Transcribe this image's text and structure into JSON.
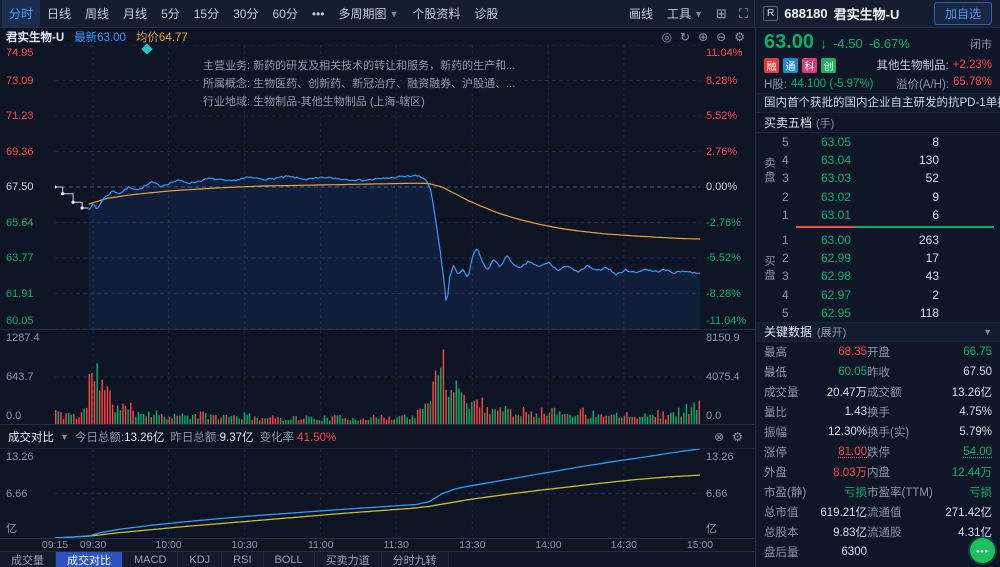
{
  "colors": {
    "up": "#ff4646",
    "down": "#00b36b",
    "accent": "#3f8cff",
    "price_line": "#2f9bff",
    "avg_line": "#e8a23c",
    "today_line": "#2f9bff",
    "yesterday_line": "#c9bd37"
  },
  "toolbar": {
    "periods": [
      {
        "label": "分时",
        "active": true
      },
      {
        "label": "日线"
      },
      {
        "label": "周线"
      },
      {
        "label": "月线"
      },
      {
        "label": "5分"
      },
      {
        "label": "15分"
      },
      {
        "label": "30分"
      },
      {
        "label": "60分"
      }
    ],
    "more": "•••",
    "menus": [
      {
        "label": "多周期图",
        "caret": true
      },
      {
        "label": "个股资料",
        "caret": false
      },
      {
        "label": "诊股",
        "caret": false
      }
    ],
    "tools": [
      {
        "label": "画线",
        "caret": false
      },
      {
        "label": "工具",
        "caret": true
      }
    ],
    "window_icons": [
      {
        "name": "multi-chart-icon",
        "glyph": "⊞"
      },
      {
        "name": "fullscreen-icon",
        "glyph": "⛶"
      }
    ],
    "flag": "R",
    "code": "688180",
    "name": "君实生物-U",
    "add_watchlist": "加自选"
  },
  "chart_header": {
    "name": "君实生物-U",
    "latest_label": "最新",
    "latest_value": "63.00",
    "avg_label": "均价",
    "avg_value": "64.77",
    "icons": [
      {
        "name": "snapshot-icon",
        "glyph": "◎"
      },
      {
        "name": "refresh-icon",
        "glyph": "↻"
      },
      {
        "name": "zoom-in-icon",
        "glyph": "⊕"
      },
      {
        "name": "zoom-out-icon",
        "glyph": "⊖"
      },
      {
        "name": "settings-gear-icon",
        "glyph": "⚙"
      }
    ]
  },
  "overlay": {
    "rows": [
      {
        "label": "主营业务:",
        "text": "新药的研发及相关技术的转让和服务，新药的生产和..."
      },
      {
        "label": "所属概念:",
        "text": "生物医药、创新药、新冠治疗、融资融券、沪股通、..."
      },
      {
        "label": "行业地域:",
        "text": "生物制品-其他生物制品 (上海-辖区)"
      }
    ]
  },
  "quote": {
    "price": "63.00",
    "arrow": "↓",
    "change": "-4.50",
    "percent": "-6.67%",
    "status": "闭市"
  },
  "badges": [
    {
      "text": "融",
      "color": "#e03b3b"
    },
    {
      "text": "通",
      "color": "#1f89c9"
    },
    {
      "text": "科",
      "color": "#e03b6e"
    },
    {
      "text": "创",
      "color": "#1fae5e"
    }
  ],
  "industry": {
    "label": "其他生物制品:",
    "value": "+2.23%"
  },
  "hk": {
    "label": "H股:",
    "value": "44.100 (-5.97%)",
    "premium_label": "溢价(A/H):",
    "premium_value": "65.78%"
  },
  "news": "国内首个获批的国内企业自主研发的抗PD-1单抗",
  "order_book": {
    "title": "买卖五档",
    "unit": "(手)",
    "sell_side_label": "卖盘",
    "buy_side_label": "买盘",
    "sell": [
      [
        "5",
        "63.05",
        "8"
      ],
      [
        "4",
        "63.04",
        "130"
      ],
      [
        "3",
        "63.03",
        "52"
      ],
      [
        "2",
        "63.02",
        "9"
      ],
      [
        "1",
        "63.01",
        "6"
      ]
    ],
    "buy": [
      [
        "1",
        "63.00",
        "263"
      ],
      [
        "2",
        "62.99",
        "17"
      ],
      [
        "3",
        "62.98",
        "43"
      ],
      [
        "4",
        "62.97",
        "2"
      ],
      [
        "5",
        "62.95",
        "118"
      ]
    ],
    "ratio": {
      "red": 0.3,
      "green": 0.7
    }
  },
  "key_data": {
    "title": "关键数据",
    "expand": "(展开)",
    "rows": [
      [
        [
          "最高",
          "68.35",
          "up",
          false
        ],
        [
          "开盘",
          "66.75",
          "down",
          false
        ]
      ],
      [
        [
          "最低",
          "60.05",
          "down",
          false
        ],
        [
          "昨收",
          "67.50",
          "plain",
          false
        ]
      ],
      [
        [
          "成交量",
          "20.47万",
          "plain",
          false
        ],
        [
          "成交额",
          "13.26亿",
          "plain",
          false
        ]
      ],
      [
        [
          "量比",
          "1.43",
          "plain",
          false
        ],
        [
          "换手",
          "4.75%",
          "plain",
          false
        ]
      ],
      [
        [
          "振幅",
          "12.30%",
          "plain",
          false
        ],
        [
          "换手(实)",
          "5.79%",
          "plain",
          false
        ]
      ],
      [
        [
          "涨停",
          "81.00",
          "up",
          true
        ],
        [
          "跌停",
          "54.00",
          "down",
          true
        ]
      ],
      [
        [
          "外盘",
          "8.03万",
          "up",
          false
        ],
        [
          "内盘",
          "12.44万",
          "down",
          false
        ]
      ],
      [
        [
          "市盈(静)",
          "亏损",
          "down",
          false
        ],
        [
          "市盈率(TTM)",
          "亏损",
          "down",
          false
        ]
      ],
      [
        [
          "总市值",
          "619.21亿",
          "plain",
          false
        ],
        [
          "流通值",
          "271.42亿",
          "plain",
          false
        ]
      ],
      [
        [
          "总股本",
          "9.83亿",
          "plain",
          false
        ],
        [
          "流通股",
          "4.31亿",
          "plain",
          false
        ]
      ],
      [
        [
          "盘后量",
          "6300",
          "plain",
          false
        ],
        [
          "",
          "",
          "plain",
          false
        ]
      ]
    ]
  },
  "turnover_header": {
    "title": "成交对比",
    "today_label": "今日总额:",
    "today_value": "13.26亿",
    "yesterday_label": "昨日总额:",
    "yesterday_value": "9.37亿",
    "change_label": "变化率",
    "change_value": "41.50%",
    "icons": [
      {
        "name": "close-panel-icon",
        "glyph": "⊗"
      },
      {
        "name": "panel-settings-gear-icon",
        "glyph": "⚙"
      }
    ]
  },
  "bottom_tabs": [
    {
      "label": "成交量"
    },
    {
      "label": "成交对比",
      "active": true
    },
    {
      "label": "MACD"
    },
    {
      "label": "KDJ"
    },
    {
      "label": "RSI"
    },
    {
      "label": "BOLL"
    },
    {
      "label": "买卖力道"
    },
    {
      "label": "分时九转"
    }
  ],
  "chart_data": {
    "type": "line",
    "title": "君实生物-U 分时走势",
    "prev_close": 67.5,
    "ylim": [
      60.05,
      74.95
    ],
    "price_axis_left": [
      "74.95",
      "73.09",
      "71.23",
      "69.36",
      "67.50",
      "65.64",
      "63.77",
      "61.91",
      "60.05"
    ],
    "pct_axis_right": [
      "11.04%",
      "8.28%",
      "5.52%",
      "2.76%",
      "0.00%",
      "-2.76%",
      "-5.52%",
      "-8.28%",
      "-11.04%"
    ],
    "volume_axis_left": [
      "1287.4",
      "643.7",
      "0.0"
    ],
    "volume_axis_right": [
      "8150.9",
      "4075.4",
      "0.0"
    ],
    "turnover_axis": [
      "13.26",
      "6.66",
      "亿"
    ],
    "time_ticks": [
      [
        "09:15",
        0
      ],
      [
        "09:30",
        0.059
      ],
      [
        "10:00",
        0.176
      ],
      [
        "10:30",
        0.294
      ],
      [
        "11:00",
        0.412
      ],
      [
        "11:30",
        0.529
      ],
      [
        "13:30",
        0.647
      ],
      [
        "14:00",
        0.765
      ],
      [
        "14:30",
        0.882
      ],
      [
        "15:00",
        1
      ]
    ],
    "auction_line": [
      [
        0,
        67.5
      ],
      [
        0.012,
        67.5
      ],
      [
        0.012,
        67.15
      ],
      [
        0.028,
        67.15
      ],
      [
        0.028,
        66.7
      ],
      [
        0.042,
        66.7
      ],
      [
        0.042,
        66.4
      ],
      [
        0.052,
        66.4
      ]
    ],
    "price_line": [
      [
        0.052,
        66.35
      ],
      [
        0.06,
        66.6
      ],
      [
        0.065,
        66.3
      ],
      [
        0.075,
        66.9
      ],
      [
        0.09,
        67.3
      ],
      [
        0.1,
        67.15
      ],
      [
        0.115,
        67.5
      ],
      [
        0.13,
        67.35
      ],
      [
        0.15,
        67.75
      ],
      [
        0.165,
        67.55
      ],
      [
        0.19,
        67.85
      ],
      [
        0.21,
        67.7
      ],
      [
        0.24,
        67.95
      ],
      [
        0.27,
        67.8
      ],
      [
        0.3,
        68.0
      ],
      [
        0.33,
        67.9
      ],
      [
        0.36,
        68.05
      ],
      [
        0.39,
        67.9
      ],
      [
        0.42,
        68.0
      ],
      [
        0.45,
        67.9
      ],
      [
        0.48,
        67.85
      ],
      [
        0.51,
        67.95
      ],
      [
        0.54,
        68.05
      ],
      [
        0.56,
        68.1
      ],
      [
        0.575,
        67.9
      ],
      [
        0.583,
        67.3
      ],
      [
        0.59,
        65.8
      ],
      [
        0.597,
        64.2
      ],
      [
        0.603,
        62.6
      ],
      [
        0.607,
        61.2
      ],
      [
        0.612,
        62.8
      ],
      [
        0.618,
        63.4
      ],
      [
        0.625,
        62.9
      ],
      [
        0.633,
        63.2
      ],
      [
        0.64,
        62.7
      ],
      [
        0.648,
        63.9
      ],
      [
        0.655,
        64.3
      ],
      [
        0.662,
        63.6
      ],
      [
        0.67,
        63.1
      ],
      [
        0.68,
        63.7
      ],
      [
        0.69,
        63.3
      ],
      [
        0.7,
        63.9
      ],
      [
        0.71,
        63.5
      ],
      [
        0.72,
        63.2
      ],
      [
        0.735,
        63.6
      ],
      [
        0.75,
        63.3
      ],
      [
        0.765,
        63.55
      ],
      [
        0.78,
        63.1
      ],
      [
        0.795,
        63.4
      ],
      [
        0.81,
        63.0
      ],
      [
        0.825,
        63.35
      ],
      [
        0.84,
        63.1
      ],
      [
        0.855,
        63.3
      ],
      [
        0.87,
        62.9
      ],
      [
        0.885,
        63.15
      ],
      [
        0.9,
        63.0
      ],
      [
        0.915,
        63.2
      ],
      [
        0.93,
        63.05
      ],
      [
        0.945,
        63.15
      ],
      [
        0.96,
        63.0
      ],
      [
        0.975,
        63.1
      ],
      [
        0.99,
        63.0
      ],
      [
        1,
        63.0
      ]
    ],
    "avg_line": [
      [
        0.052,
        66.6
      ],
      [
        0.08,
        66.9
      ],
      [
        0.12,
        67.1
      ],
      [
        0.18,
        67.3
      ],
      [
        0.25,
        67.45
      ],
      [
        0.32,
        67.55
      ],
      [
        0.4,
        67.6
      ],
      [
        0.48,
        67.65
      ],
      [
        0.56,
        67.7
      ],
      [
        0.58,
        67.68
      ],
      [
        0.6,
        67.5
      ],
      [
        0.62,
        67.15
      ],
      [
        0.64,
        66.8
      ],
      [
        0.66,
        66.5
      ],
      [
        0.69,
        66.1
      ],
      [
        0.72,
        65.8
      ],
      [
        0.75,
        65.55
      ],
      [
        0.78,
        65.35
      ],
      [
        0.81,
        65.2
      ],
      [
        0.85,
        65.05
      ],
      [
        0.89,
        64.95
      ],
      [
        0.93,
        64.87
      ],
      [
        0.97,
        64.8
      ],
      [
        1,
        64.77
      ]
    ],
    "volume_envelope": [
      [
        0,
        0.22
      ],
      [
        0.01,
        0.12
      ],
      [
        0.02,
        0.18
      ],
      [
        0.035,
        0.1
      ],
      [
        0.05,
        0.3
      ],
      [
        0.055,
        1.0
      ],
      [
        0.062,
        0.85
      ],
      [
        0.07,
        0.6
      ],
      [
        0.08,
        0.45
      ],
      [
        0.09,
        0.32
      ],
      [
        0.105,
        0.26
      ],
      [
        0.12,
        0.22
      ],
      [
        0.14,
        0.18
      ],
      [
        0.17,
        0.14
      ],
      [
        0.2,
        0.12
      ],
      [
        0.23,
        0.14
      ],
      [
        0.26,
        0.11
      ],
      [
        0.29,
        0.13
      ],
      [
        0.32,
        0.1
      ],
      [
        0.35,
        0.09
      ],
      [
        0.38,
        0.1
      ],
      [
        0.41,
        0.09
      ],
      [
        0.44,
        0.1
      ],
      [
        0.47,
        0.09
      ],
      [
        0.5,
        0.1
      ],
      [
        0.53,
        0.11
      ],
      [
        0.555,
        0.13
      ],
      [
        0.572,
        0.2
      ],
      [
        0.583,
        0.45
      ],
      [
        0.592,
        0.75
      ],
      [
        0.6,
        1.0
      ],
      [
        0.608,
        0.85
      ],
      [
        0.617,
        0.65
      ],
      [
        0.627,
        0.5
      ],
      [
        0.64,
        0.4
      ],
      [
        0.655,
        0.33
      ],
      [
        0.67,
        0.28
      ],
      [
        0.69,
        0.24
      ],
      [
        0.71,
        0.2
      ],
      [
        0.73,
        0.22
      ],
      [
        0.75,
        0.18
      ],
      [
        0.77,
        0.2
      ],
      [
        0.79,
        0.16
      ],
      [
        0.81,
        0.2
      ],
      [
        0.83,
        0.15
      ],
      [
        0.85,
        0.18
      ],
      [
        0.87,
        0.14
      ],
      [
        0.89,
        0.17
      ],
      [
        0.91,
        0.13
      ],
      [
        0.93,
        0.16
      ],
      [
        0.95,
        0.14
      ],
      [
        0.97,
        0.18
      ],
      [
        0.985,
        0.28
      ],
      [
        1,
        0.35
      ]
    ],
    "turnover_ylim": [
      0,
      13.26
    ],
    "turnover_today": [
      [
        0,
        0
      ],
      [
        0.03,
        0.15
      ],
      [
        0.055,
        0.35
      ],
      [
        0.07,
        0.8
      ],
      [
        0.1,
        1.3
      ],
      [
        0.15,
        1.9
      ],
      [
        0.2,
        2.4
      ],
      [
        0.25,
        2.85
      ],
      [
        0.3,
        3.25
      ],
      [
        0.35,
        3.6
      ],
      [
        0.4,
        3.95
      ],
      [
        0.45,
        4.3
      ],
      [
        0.5,
        4.6
      ],
      [
        0.53,
        4.8
      ],
      [
        0.56,
        5.0
      ],
      [
        0.58,
        5.4
      ],
      [
        0.6,
        6.6
      ],
      [
        0.62,
        7.3
      ],
      [
        0.64,
        7.7
      ],
      [
        0.67,
        8.2
      ],
      [
        0.7,
        8.7
      ],
      [
        0.73,
        9.2
      ],
      [
        0.76,
        9.7
      ],
      [
        0.79,
        10.2
      ],
      [
        0.82,
        10.7
      ],
      [
        0.85,
        11.15
      ],
      [
        0.88,
        11.6
      ],
      [
        0.91,
        12.0
      ],
      [
        0.94,
        12.45
      ],
      [
        0.97,
        12.9
      ],
      [
        1,
        13.26
      ]
    ],
    "turnover_yesterday": [
      [
        0,
        0
      ],
      [
        0.055,
        0.3
      ],
      [
        0.1,
        0.8
      ],
      [
        0.15,
        1.25
      ],
      [
        0.2,
        1.7
      ],
      [
        0.25,
        2.1
      ],
      [
        0.3,
        2.5
      ],
      [
        0.35,
        2.9
      ],
      [
        0.4,
        3.3
      ],
      [
        0.45,
        3.7
      ],
      [
        0.5,
        4.05
      ],
      [
        0.55,
        4.4
      ],
      [
        0.58,
        4.7
      ],
      [
        0.61,
        5.2
      ],
      [
        0.64,
        5.7
      ],
      [
        0.67,
        6.1
      ],
      [
        0.7,
        6.5
      ],
      [
        0.75,
        7.1
      ],
      [
        0.8,
        7.65
      ],
      [
        0.85,
        8.2
      ],
      [
        0.9,
        8.7
      ],
      [
        0.95,
        9.1
      ],
      [
        1,
        9.37
      ]
    ]
  }
}
